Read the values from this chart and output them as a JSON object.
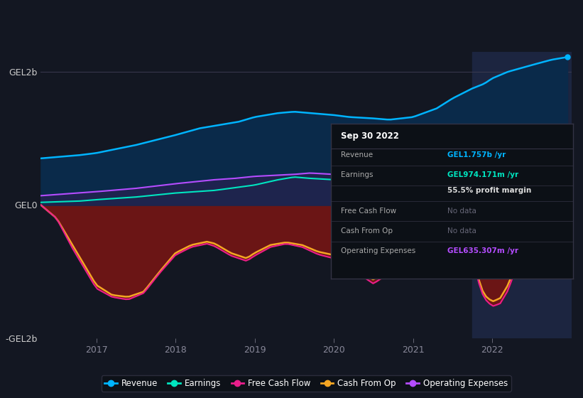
{
  "bg_color": "#131722",
  "plot_bg_color": "#131722",
  "ylabel_pos": "GEL2b",
  "ylabel_neg": "-GEL2b",
  "ylabel_zero": "GEL0",
  "x_labels": [
    "2017",
    "2018",
    "2019",
    "2020",
    "2021",
    "2022"
  ],
  "tooltip": {
    "date": "Sep 30 2022",
    "revenue_label": "Revenue",
    "revenue_val": "GEL1.757b /yr",
    "earnings_label": "Earnings",
    "earnings_val": "GEL974.171m /yr",
    "profit_margin": "55.5% profit margin",
    "fcf_label": "Free Cash Flow",
    "fcf_val": "No data",
    "cashfromop_label": "Cash From Op",
    "cashfromop_val": "No data",
    "opex_label": "Operating Expenses",
    "opex_val": "GEL635.307m /yr"
  },
  "legend": [
    {
      "label": "Revenue",
      "color": "#00b4ff"
    },
    {
      "label": "Earnings",
      "color": "#00e5c0"
    },
    {
      "label": "Free Cash Flow",
      "color": "#e91e8c"
    },
    {
      "label": "Cash From Op",
      "color": "#f5a623"
    },
    {
      "label": "Operating Expenses",
      "color": "#b44cff"
    }
  ],
  "revenue_color": "#00b4ff",
  "earnings_color": "#00e5c0",
  "fcf_color": "#e91e8c",
  "cashfromop_color": "#f5a623",
  "opex_color": "#b44cff",
  "revenue_fill_color": "#0a2a4a",
  "earnings_fill_color": "#0a3040",
  "opex_fill_color": "#1a1a4a",
  "negative_fill_color": "#6b1515",
  "tooltip_bg": "#0d1117",
  "tooltip_border": "#2a2e39",
  "revenue_color_tooltip": "#00b4ff",
  "earnings_color_tooltip": "#00e5c0",
  "opex_color_tooltip": "#b44cff",
  "highlight_bg": "#1c2540",
  "highlight_start": 2021.75,
  "highlight_end": 2023.0,
  "xmin": 2016.3,
  "xmax": 2023.0,
  "ymin": -2.0,
  "ymax": 2.3
}
